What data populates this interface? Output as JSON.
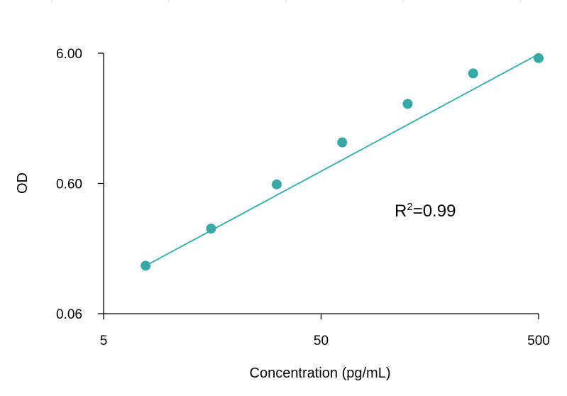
{
  "chart_data": {
    "type": "scatter",
    "xlabel": "Concentration (pg/mL)",
    "ylabel": "OD",
    "x_scale": "log",
    "y_scale": "log",
    "xlim": [
      5,
      500
    ],
    "ylim": [
      0.06,
      6.0
    ],
    "x_ticks": [
      "5",
      "50",
      "500"
    ],
    "y_ticks": [
      "6.00",
      "0.60",
      "0.06"
    ],
    "grid": false,
    "point_color": "#3aa9a6",
    "line_color": "#3aa9a6",
    "series": [
      {
        "x": [
          7.8,
          15.6,
          31.25,
          62.5,
          125,
          250,
          500
        ],
        "y": [
          0.14,
          0.27,
          0.59,
          1.24,
          2.45,
          4.2,
          5.5
        ]
      }
    ],
    "trendline": {
      "x": [
        7.8,
        500
      ],
      "y": [
        0.14,
        5.9
      ]
    },
    "annotation": {
      "base": "R",
      "sup": "2",
      "rest": "=0.99"
    }
  }
}
